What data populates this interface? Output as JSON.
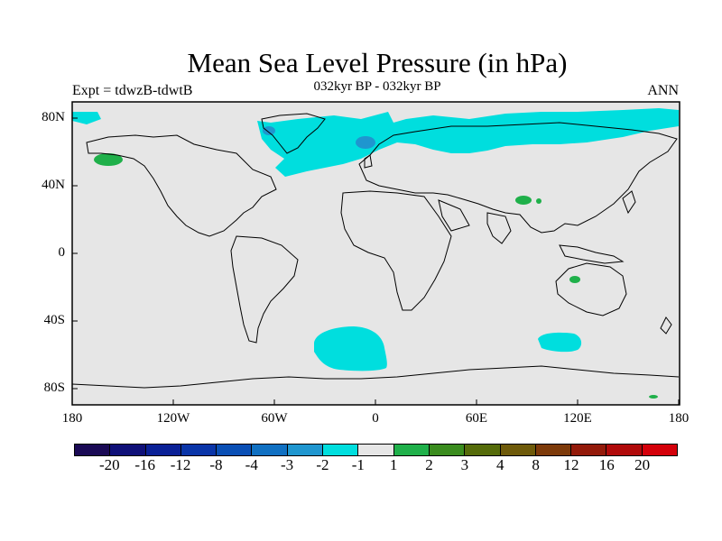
{
  "title": "Mean Sea Level Pressure (in hPa)",
  "subtitle": "032kyr BP - 032kyr BP",
  "experiment": "Expt = tdwzB-tdwtB",
  "season": "ANN",
  "chart_data": {
    "type": "heatmap",
    "projection": "cylindrical-equidistant",
    "xlim": [
      -180,
      180
    ],
    "ylim": [
      -90,
      90
    ],
    "grid": false,
    "x_tick_labels": [
      "180",
      "120W",
      "60W",
      "0",
      "60E",
      "120E",
      "180"
    ],
    "y_tick_labels": [
      "80N",
      "40N",
      "0",
      "40S",
      "80S"
    ],
    "colorbar": {
      "levels": [
        "-20",
        "-16",
        "-12",
        "-8",
        "-4",
        "-3",
        "-2",
        "-1",
        "1",
        "2",
        "3",
        "4",
        "8",
        "12",
        "16",
        "20"
      ],
      "colors": [
        "#1a0a55",
        "#0f1078",
        "#0a2096",
        "#0a35a8",
        "#0a4fb5",
        "#1070c2",
        "#1f96cf",
        "#00dede",
        "#e6e6e6",
        "#1fb04a",
        "#3a8c1e",
        "#556b0a",
        "#6e5a0a",
        "#7d3a0a",
        "#931a0a",
        "#b00a0a",
        "#d4000a"
      ]
    },
    "anomaly_regions": [
      {
        "level": "-2 to -1",
        "color": "#00dede",
        "area": "North Atlantic / Greenland / Arctic",
        "approx_lon": [
          -60,
          20
        ],
        "approx_lat": [
          50,
          82
        ]
      },
      {
        "level": "-2 to -1",
        "color": "#00dede",
        "area": "Arctic Siberia",
        "approx_lon": [
          40,
          175
        ],
        "approx_lat": [
          58,
          85
        ]
      },
      {
        "level": "-2 to -1",
        "color": "#00dede",
        "area": "Beaufort Sea",
        "approx_lon": [
          -180,
          -165
        ],
        "approx_lat": [
          75,
          82
        ]
      },
      {
        "level": "-3 to -2",
        "color": "#1f96cf",
        "area": "Greenland",
        "approx_lon": [
          -60,
          -55
        ],
        "approx_lat": [
          68,
          72
        ]
      },
      {
        "level": "-3 to -2",
        "color": "#1f96cf",
        "area": "Iceland",
        "approx_lon": [
          -15,
          -5
        ],
        "approx_lat": [
          62,
          66
        ]
      },
      {
        "level": "-2 to -1",
        "color": "#00dede",
        "area": "South Atlantic",
        "approx_lon": [
          -35,
          10
        ],
        "approx_lat": [
          -67,
          -45
        ]
      },
      {
        "level": "-2 to -1",
        "color": "#00dede",
        "area": "Southern Indian Ocean",
        "approx_lon": [
          97,
          125
        ],
        "approx_lat": [
          -57,
          -47
        ]
      },
      {
        "level": "1 to 2",
        "color": "#1fb04a",
        "area": "Alaska / Bering",
        "approx_lon": [
          -168,
          -152
        ],
        "approx_lat": [
          50,
          56
        ]
      },
      {
        "level": "1 to 2",
        "color": "#1fb04a",
        "area": "Tibet",
        "approx_lon": [
          82,
          96
        ],
        "approx_lat": [
          30,
          33
        ]
      },
      {
        "level": "1 to 2",
        "color": "#1fb04a",
        "area": "Western Australia",
        "approx_lon": [
          114,
          122
        ],
        "approx_lat": [
          -17,
          -13
        ]
      },
      {
        "level": "1 to 2",
        "color": "#1fb04a",
        "area": "Antarctic coast",
        "approx_lon": [
          164,
          170
        ],
        "approx_lat": [
          -84,
          -83
        ]
      }
    ]
  }
}
